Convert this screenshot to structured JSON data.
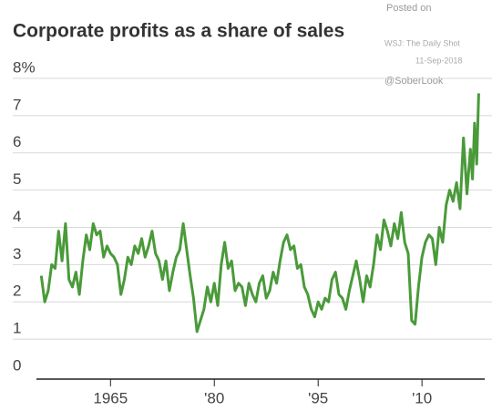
{
  "chart_data": {
    "type": "line",
    "title": "Corporate profits as a share of sales",
    "annotations": [
      "Posted on",
      "WSJ: The Daily Shot",
      "11-Sep-2018",
      "@SoberLook"
    ],
    "x": [
      1955,
      1955.5,
      1956,
      1956.5,
      1957,
      1957.5,
      1958,
      1958.5,
      1959,
      1959.5,
      1960,
      1960.5,
      1961,
      1961.5,
      1962,
      1962.5,
      1963,
      1963.5,
      1964,
      1964.5,
      1965,
      1965.5,
      1966,
      1966.5,
      1967,
      1967.5,
      1968,
      1968.5,
      1969,
      1969.5,
      1970,
      1970.5,
      1971,
      1971.5,
      1972,
      1972.5,
      1973,
      1973.5,
      1974,
      1974.5,
      1975,
      1975.5,
      1976,
      1976.5,
      1977,
      1977.5,
      1978,
      1978.5,
      1979,
      1979.5,
      1980,
      1980.5,
      1981,
      1981.5,
      1982,
      1982.5,
      1983,
      1983.5,
      1984,
      1984.5,
      1985,
      1985.5,
      1986,
      1986.5,
      1987,
      1987.5,
      1988,
      1988.5,
      1989,
      1989.5,
      1990,
      1990.5,
      1991,
      1991.5,
      1992,
      1992.5,
      1993,
      1993.5,
      1994,
      1994.5,
      1995,
      1995.5,
      1996,
      1996.5,
      1997,
      1997.5,
      1998,
      1998.5,
      1999,
      1999.5,
      2000,
      2000.5,
      2001,
      2001.5,
      2002,
      2002.5,
      2003,
      2003.5,
      2004,
      2004.5,
      2005,
      2005.5,
      2006,
      2006.5,
      2007,
      2007.5,
      2008,
      2008.5,
      2009,
      2009.5,
      2010,
      2010.5,
      2011,
      2011.5,
      2012,
      2012.5,
      2013,
      2013.5,
      2014,
      2014.5,
      2015,
      2015.5,
      2016,
      2016.5,
      2017,
      2017.3,
      2017.6,
      2017.9,
      2018.2
    ],
    "series": [
      {
        "color": "#4a9a3a",
        "values": [
          2.7,
          2.0,
          2.3,
          3.0,
          2.9,
          3.9,
          3.1,
          4.1,
          2.6,
          2.4,
          2.8,
          2.2,
          3.1,
          3.8,
          3.4,
          4.1,
          3.8,
          3.9,
          3.2,
          3.5,
          3.3,
          3.2,
          3.0,
          2.2,
          2.6,
          3.2,
          3.0,
          3.5,
          3.3,
          3.7,
          3.2,
          3.5,
          3.9,
          3.3,
          3.1,
          2.6,
          3.1,
          2.3,
          2.8,
          3.2,
          3.4,
          4.1,
          3.4,
          2.7,
          2.1,
          1.2,
          1.5,
          1.8,
          2.4,
          2.0,
          2.5,
          1.9,
          3.0,
          3.6,
          2.9,
          3.1,
          2.3,
          2.5,
          2.4,
          1.9,
          2.5,
          2.2,
          2.0,
          2.5,
          2.7,
          2.1,
          2.3,
          2.8,
          2.5,
          3.1,
          3.6,
          3.8,
          3.4,
          3.5,
          2.9,
          3.0,
          2.4,
          2.2,
          1.8,
          1.6,
          2.0,
          1.8,
          2.1,
          2.0,
          2.6,
          2.8,
          2.2,
          2.1,
          1.8,
          2.3,
          2.7,
          3.1,
          2.6,
          2.0,
          2.7,
          2.4,
          3.0,
          3.8,
          3.4,
          4.2,
          3.9,
          3.5,
          4.1,
          3.7,
          4.4,
          3.6,
          3.3,
          1.5,
          1.4,
          2.4,
          3.2,
          3.6,
          3.8,
          3.7,
          3.0,
          4.0,
          3.6,
          4.6,
          5.0,
          4.7,
          5.2,
          4.5,
          6.4,
          4.9,
          6.1,
          5.3,
          6.8,
          5.7,
          7.6
        ]
      }
    ],
    "xlim": [
      1954.3,
      2018.8
    ],
    "xticks": [
      1965,
      {
        "value": 1980,
        "label": "'80"
      },
      {
        "value": 1995,
        "label": "'95"
      },
      {
        "value": 2010,
        "label": "'10"
      }
    ],
    "ylim": [
      0,
      8
    ],
    "yticks": [
      0,
      1,
      2,
      3,
      4,
      5,
      6,
      7,
      {
        "value": 8,
        "label": "8%"
      }
    ],
    "grid": true
  }
}
